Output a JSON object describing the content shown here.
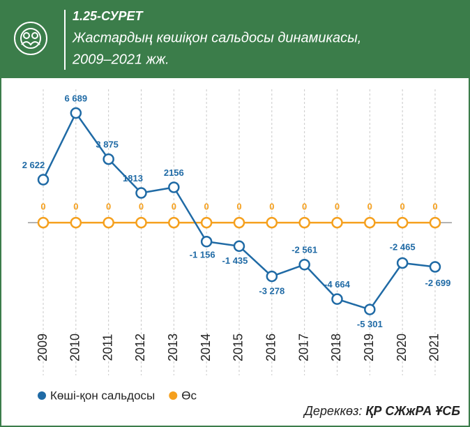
{
  "header": {
    "figure": "1.25-СУРЕТ",
    "title_line1": "Жастардың көшіқон сальдосы динамикасы,",
    "title_line2": "2009–2021 жж."
  },
  "chart_data": {
    "type": "line",
    "categories": [
      "2009",
      "2010",
      "2011",
      "2012",
      "2013",
      "2014",
      "2015",
      "2016",
      "2017",
      "2018",
      "2019",
      "2020",
      "2021"
    ],
    "ylim": [
      -6000,
      7500
    ],
    "series": [
      {
        "name": "Көші-қон сальдосы",
        "color": "#1f6aa5",
        "values": [
          2622,
          6689,
          3875,
          1813,
          2156,
          -1156,
          -1435,
          -3278,
          -2561,
          -4664,
          -5301,
          -2465,
          -2699
        ],
        "value_labels": [
          "2 622",
          "6 689",
          "3 875",
          "1813",
          "2156",
          "-1 156",
          "-1 435",
          "-3 278",
          "-2 561",
          "-4 664",
          "-5 301",
          "-2 465",
          "-2 699"
        ]
      },
      {
        "name": "Өс",
        "color": "#f5a01e",
        "values": [
          0,
          0,
          0,
          0,
          0,
          0,
          0,
          0,
          0,
          0,
          0,
          0,
          0
        ]
      }
    ],
    "legend": "bottom-left",
    "source": {
      "label": "Дереккөз:",
      "text": "ҚР СЖжРА ҰСБ"
    }
  }
}
